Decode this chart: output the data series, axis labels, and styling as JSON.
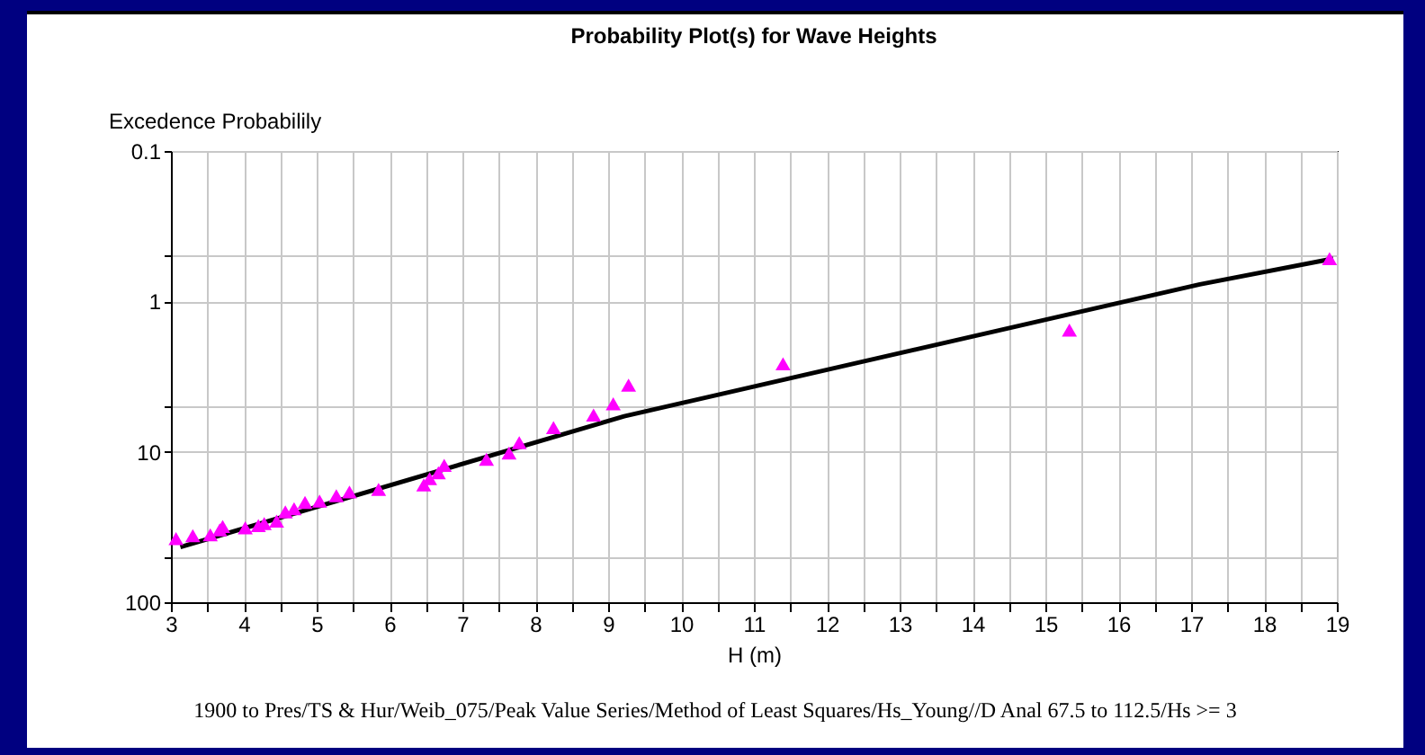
{
  "chart_data": {
    "type": "scatter",
    "title": "Probability Plot(s) for Wave Heights",
    "xlabel": "H (m)",
    "ylabel": "Excedence Probabilily",
    "annotations": [
      "1900 to Pres/TS & Hur/Weib_075/Peak Value Series/Method of Least Squares/Hs_Young//D Anal 67.5 to 112.5/Hs >= 3"
    ],
    "log": "y",
    "grid": true,
    "xlim": [
      3,
      19
    ],
    "ylim": [
      100,
      0.1
    ],
    "xticks": [
      3,
      {
        "value": 3.5,
        "label": null
      },
      4,
      {
        "value": 4.5,
        "label": null
      },
      5,
      {
        "value": 5.5,
        "label": null
      },
      6,
      {
        "value": 6.5,
        "label": null
      },
      7,
      {
        "value": 7.5,
        "label": null
      },
      8,
      {
        "value": 8.5,
        "label": null
      },
      9,
      {
        "value": 9.5,
        "label": null
      },
      10,
      {
        "value": 10.5,
        "label": null
      },
      11,
      {
        "value": 11.5,
        "label": null
      },
      12,
      {
        "value": 12.5,
        "label": null
      },
      13,
      {
        "value": 13.5,
        "label": null
      },
      14,
      {
        "value": 14.5,
        "label": null
      },
      15,
      {
        "value": 15.5,
        "label": null
      },
      16,
      {
        "value": 16.5,
        "label": null
      },
      17,
      {
        "value": 17.5,
        "label": null
      },
      18,
      {
        "value": 18.5,
        "label": null
      },
      19
    ],
    "yticks": [
      0.1,
      {
        "value": 0.5,
        "label": null
      },
      1,
      {
        "value": 5,
        "label": null
      },
      10,
      {
        "value": 50,
        "label": null
      },
      100
    ],
    "series": [
      {
        "type": "line",
        "color": "#000000",
        "line_style": "solid",
        "x": [
          3.13,
          9.22,
          17.12,
          18.95
        ],
        "values": [
          43,
          5.8,
          0.77,
          0.52
        ]
      },
      {
        "color": "#ff00ff",
        "marker": "triangle",
        "x": [
          3.07,
          3.3,
          3.54,
          3.67,
          3.71,
          4.02,
          4.2,
          4.28,
          4.45,
          4.57,
          4.69,
          4.84,
          5.04,
          5.27,
          5.45,
          5.85,
          6.47,
          6.55,
          6.67,
          6.75,
          7.33,
          7.64,
          7.78,
          8.25,
          8.8,
          9.07,
          9.28,
          11.4,
          15.33,
          18.9
        ],
        "values": [
          37.8,
          36.1,
          35.6,
          33,
          31.4,
          32,
          30.9,
          30,
          28.9,
          25.1,
          23.9,
          21.7,
          21.3,
          19.6,
          18.5,
          17.8,
          16.6,
          15.1,
          13.8,
          12.3,
          11.2,
          10.2,
          8.7,
          6.9,
          5.7,
          4.8,
          3.6,
          2.6,
          1.55,
          0.52
        ]
      }
    ]
  }
}
